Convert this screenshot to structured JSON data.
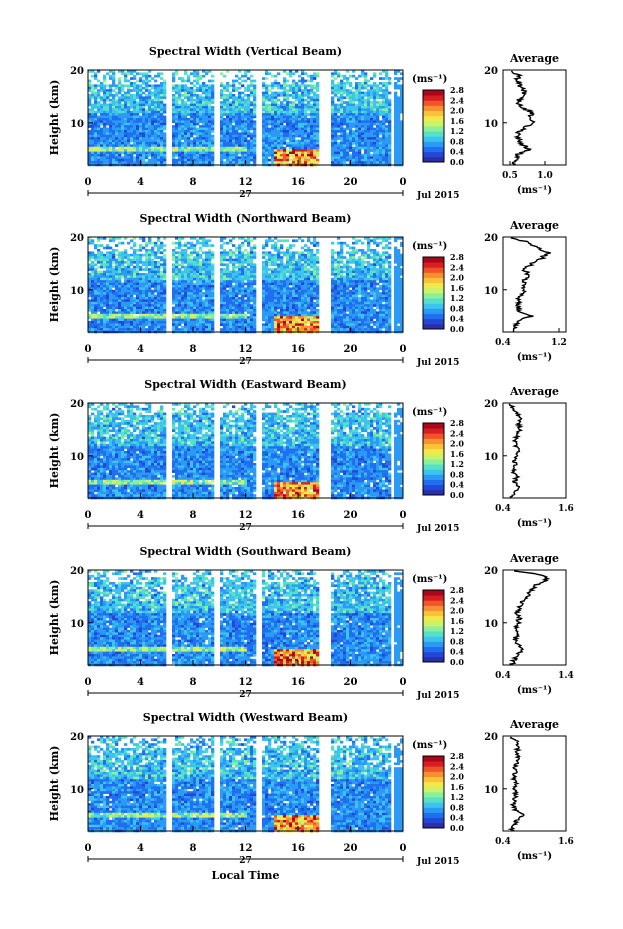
{
  "chart_data": [
    {
      "type": "heatmap",
      "title": "Spectral Width (Vertical Beam)",
      "ylabel": "Height (km)",
      "xlabel": "",
      "x_ticks": [
        "0",
        "4",
        "8",
        "12",
        "16",
        "20",
        "0"
      ],
      "y_ticks": [
        "20",
        "10"
      ],
      "ylim": [
        2,
        20
      ],
      "xlim": [
        0,
        24
      ],
      "day_label": "27",
      "date_label": "Jul 2015",
      "colorbar": {
        "unit": "(ms⁻¹)",
        "ticks": [
          "2.8",
          "2.4",
          "2.0",
          "1.6",
          "1.2",
          "0.8",
          "0.4",
          "0.0"
        ],
        "range": [
          0,
          2.8
        ]
      },
      "gaps_hours": [
        [
          5.8,
          6.2
        ],
        [
          9.6,
          9.9
        ],
        [
          12.6,
          13.1
        ],
        [
          17.5,
          18.3
        ],
        [
          22.9,
          23.3
        ]
      ],
      "top_km": 17.5,
      "profile": {
        "title": "Average",
        "xlabel": "(ms⁻¹)",
        "x_ticks": [
          "0.5",
          "1.0"
        ],
        "xlim": [
          0.4,
          1.3
        ],
        "ylim": [
          2,
          20
        ],
        "y_ticks": [
          "20",
          "10"
        ],
        "heights": [
          2,
          3,
          4,
          5,
          6,
          7,
          8,
          9,
          10,
          11,
          12,
          13,
          14,
          15,
          16,
          17,
          18,
          19,
          20
        ],
        "values": [
          0.55,
          0.58,
          0.62,
          0.78,
          0.66,
          0.63,
          0.6,
          0.7,
          0.85,
          0.8,
          0.82,
          0.64,
          0.62,
          0.66,
          0.7,
          0.64,
          0.6,
          0.62,
          0.5
        ]
      }
    },
    {
      "type": "heatmap",
      "title": "Spectral Width (Northward Beam)",
      "ylabel": "Height (km)",
      "xlabel": "",
      "x_ticks": [
        "0",
        "4",
        "8",
        "12",
        "16",
        "20",
        "0"
      ],
      "y_ticks": [
        "20",
        "10"
      ],
      "ylim": [
        2,
        20
      ],
      "xlim": [
        0,
        24
      ],
      "day_label": "27",
      "date_label": "Jul 2015",
      "colorbar": {
        "unit": "(ms⁻¹)",
        "ticks": [
          "2.8",
          "2.4",
          "2.0",
          "1.6",
          "1.2",
          "0.8",
          "0.4",
          "0.0"
        ],
        "range": [
          0,
          2.8
        ]
      },
      "gaps_hours": [
        [
          5.8,
          6.2
        ],
        [
          9.6,
          9.9
        ],
        [
          12.6,
          13.1
        ],
        [
          17.5,
          18.3
        ],
        [
          22.9,
          23.3
        ]
      ],
      "top_km": 17.5,
      "profile": {
        "title": "Average",
        "xlabel": "(ms⁻¹)",
        "x_ticks": [
          "0.4",
          "1.2"
        ],
        "xlim": [
          0.4,
          1.3
        ],
        "ylim": [
          2,
          20
        ],
        "y_ticks": [
          "20",
          "10"
        ],
        "heights": [
          2,
          3,
          4,
          5,
          6,
          7,
          8,
          9,
          10,
          11,
          12,
          13,
          14,
          15,
          16,
          17,
          18,
          19,
          20
        ],
        "values": [
          0.55,
          0.58,
          0.62,
          0.8,
          0.62,
          0.6,
          0.62,
          0.66,
          0.7,
          0.68,
          0.72,
          0.75,
          0.7,
          0.82,
          0.95,
          1.05,
          0.9,
          0.75,
          0.5
        ]
      }
    },
    {
      "type": "heatmap",
      "title": "Spectral Width (Eastward Beam)",
      "ylabel": "Height (km)",
      "xlabel": "",
      "x_ticks": [
        "0",
        "4",
        "8",
        "12",
        "16",
        "20",
        "0"
      ],
      "y_ticks": [
        "20",
        "10"
      ],
      "ylim": [
        2,
        20
      ],
      "xlim": [
        0,
        24
      ],
      "day_label": "27",
      "date_label": "Jul 2015",
      "colorbar": {
        "unit": "(ms⁻¹)",
        "ticks": [
          "2.8",
          "2.4",
          "2.0",
          "1.6",
          "1.2",
          "0.8",
          "0.4",
          "0.0"
        ],
        "range": [
          0,
          2.8
        ]
      },
      "gaps_hours": [
        [
          5.8,
          6.2
        ],
        [
          9.6,
          9.9
        ],
        [
          12.6,
          13.1
        ],
        [
          17.5,
          18.3
        ],
        [
          22.9,
          23.3
        ]
      ],
      "top_km": 18.5,
      "profile": {
        "title": "Average",
        "xlabel": "(ms⁻¹)",
        "x_ticks": [
          "0.4",
          "1.6"
        ],
        "xlim": [
          0.4,
          1.6
        ],
        "ylim": [
          2,
          20
        ],
        "y_ticks": [
          "20",
          "10"
        ],
        "heights": [
          2,
          3,
          4,
          5,
          6,
          7,
          8,
          9,
          10,
          11,
          12,
          13,
          14,
          15,
          16,
          17,
          18,
          19,
          20
        ],
        "values": [
          0.55,
          0.6,
          0.7,
          0.62,
          0.66,
          0.6,
          0.64,
          0.62,
          0.66,
          0.7,
          0.64,
          0.62,
          0.68,
          0.72,
          0.7,
          0.74,
          0.66,
          0.6,
          0.5
        ]
      }
    },
    {
      "type": "heatmap",
      "title": "Spectral Width (Southward Beam)",
      "ylabel": "Height (km)",
      "xlabel": "",
      "x_ticks": [
        "0",
        "4",
        "8",
        "12",
        "16",
        "20",
        "0"
      ],
      "y_ticks": [
        "20",
        "10"
      ],
      "ylim": [
        2,
        20
      ],
      "xlim": [
        0,
        24
      ],
      "day_label": "27",
      "date_label": "Jul 2015",
      "colorbar": {
        "unit": "(ms⁻¹)",
        "ticks": [
          "2.8",
          "2.4",
          "2.0",
          "1.6",
          "1.2",
          "0.8",
          "0.4",
          "0.0"
        ],
        "range": [
          0,
          2.8
        ]
      },
      "gaps_hours": [
        [
          5.8,
          6.2
        ],
        [
          9.6,
          9.9
        ],
        [
          12.6,
          13.1
        ],
        [
          17.5,
          18.3
        ],
        [
          22.9,
          23.3
        ]
      ],
      "top_km": 18.0,
      "profile": {
        "title": "Average",
        "xlabel": "(ms⁻¹)",
        "x_ticks": [
          "0.4",
          "1.4"
        ],
        "xlim": [
          0.4,
          1.4
        ],
        "ylim": [
          2,
          20
        ],
        "y_ticks": [
          "20",
          "10"
        ],
        "heights": [
          2,
          3,
          4,
          5,
          6,
          7,
          8,
          9,
          10,
          11,
          12,
          13,
          14,
          15,
          16,
          17,
          18,
          19,
          20
        ],
        "values": [
          0.55,
          0.58,
          0.62,
          0.72,
          0.62,
          0.6,
          0.62,
          0.6,
          0.64,
          0.66,
          0.62,
          0.66,
          0.7,
          0.78,
          0.85,
          0.9,
          1.1,
          1.05,
          0.5
        ]
      }
    },
    {
      "type": "heatmap",
      "title": "Spectral Width (Westward Beam)",
      "ylabel": "Height (km)",
      "xlabel": "Local Time",
      "x_ticks": [
        "0",
        "4",
        "8",
        "12",
        "16",
        "20",
        "0"
      ],
      "y_ticks": [
        "20",
        "10"
      ],
      "ylim": [
        2,
        20
      ],
      "xlim": [
        0,
        24
      ],
      "day_label": "27",
      "date_label": "Jul 2015",
      "colorbar": {
        "unit": "(ms⁻¹)",
        "ticks": [
          "2.8",
          "2.4",
          "2.0",
          "1.6",
          "1.2",
          "0.8",
          "0.4",
          "0.0"
        ],
        "range": [
          0,
          2.8
        ]
      },
      "gaps_hours": [
        [
          5.8,
          6.2
        ],
        [
          9.6,
          9.9
        ],
        [
          12.6,
          13.1
        ],
        [
          17.5,
          18.3
        ],
        [
          22.9,
          23.3
        ]
      ],
      "top_km": 18.0,
      "profile": {
        "title": "Average",
        "xlabel": "(ms⁻¹)",
        "x_ticks": [
          "0.4",
          "1.6"
        ],
        "xlim": [
          0.4,
          1.6
        ],
        "ylim": [
          2,
          20
        ],
        "y_ticks": [
          "20",
          "10"
        ],
        "heights": [
          2,
          3,
          4,
          5,
          6,
          7,
          8,
          9,
          10,
          11,
          12,
          13,
          14,
          15,
          16,
          17,
          18,
          19,
          20
        ],
        "values": [
          0.55,
          0.6,
          0.66,
          0.78,
          0.62,
          0.6,
          0.62,
          0.64,
          0.62,
          0.66,
          0.6,
          0.64,
          0.62,
          0.66,
          0.68,
          0.66,
          0.7,
          0.66,
          0.5
        ]
      }
    }
  ]
}
